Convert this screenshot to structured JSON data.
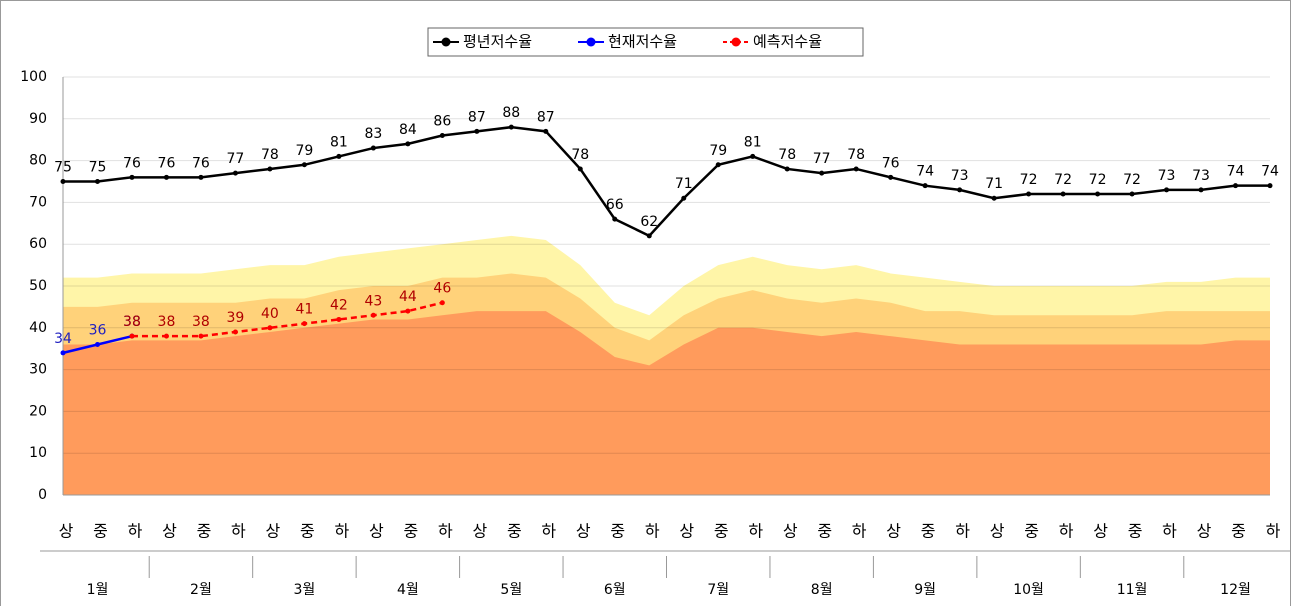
{
  "chart_data": {
    "type": "line",
    "categories": [
      "상",
      "중",
      "하",
      "상",
      "중",
      "하",
      "상",
      "중",
      "하",
      "상",
      "중",
      "하",
      "상",
      "중",
      "하",
      "상",
      "중",
      "하",
      "상",
      "중",
      "하",
      "상",
      "중",
      "하",
      "상",
      "중",
      "하",
      "상",
      "중",
      "하",
      "상",
      "중",
      "하",
      "상",
      "중",
      "하"
    ],
    "groups": [
      "1월",
      "2월",
      "3월",
      "4월",
      "5월",
      "6월",
      "7월",
      "8월",
      "9월",
      "10월",
      "11월",
      "12월"
    ],
    "ylim": [
      0,
      100
    ],
    "yticks": [
      0,
      10,
      20,
      30,
      40,
      50,
      60,
      70,
      80,
      90,
      100
    ],
    "grid": true,
    "bands": [
      {
        "color": "#fff5a8",
        "values": [
          52,
          52,
          53,
          53,
          53,
          54,
          55,
          55,
          57,
          58,
          59,
          60,
          61,
          62,
          61,
          55,
          46,
          43,
          50,
          55,
          57,
          55,
          54,
          55,
          53,
          52,
          51,
          50,
          50,
          50,
          50,
          50,
          51,
          51,
          52,
          52
        ]
      },
      {
        "color": "#ffd27a",
        "values": [
          45,
          45,
          46,
          46,
          46,
          46,
          47,
          47,
          49,
          50,
          50,
          52,
          52,
          53,
          52,
          47,
          40,
          37,
          43,
          47,
          49,
          47,
          46,
          47,
          46,
          44,
          44,
          43,
          43,
          43,
          43,
          43,
          44,
          44,
          44,
          44
        ]
      },
      {
        "color": "#ff9b5c",
        "values": [
          36,
          36,
          37,
          37,
          37,
          38,
          39,
          40,
          41,
          42,
          42,
          43,
          44,
          44,
          44,
          39,
          33,
          31,
          36,
          40,
          40,
          39,
          38,
          39,
          38,
          37,
          36,
          36,
          36,
          36,
          36,
          36,
          36,
          36,
          37,
          37
        ]
      }
    ],
    "series": [
      {
        "name": "평년저수율",
        "color": "#000000",
        "label_color": "#000000",
        "values": [
          75,
          75,
          76,
          76,
          76,
          77,
          78,
          79,
          81,
          83,
          84,
          86,
          87,
          88,
          87,
          78,
          66,
          62,
          71,
          79,
          81,
          78,
          77,
          78,
          76,
          74,
          73,
          71,
          72,
          72,
          72,
          72,
          73,
          73,
          74,
          74
        ]
      },
      {
        "name": "현재저수율",
        "color": "#0000ff",
        "label_color": "#2020c0",
        "values": [
          34,
          36,
          38,
          null,
          null,
          null,
          null,
          null,
          null,
          null,
          null,
          null,
          null,
          null,
          null,
          null,
          null,
          null,
          null,
          null,
          null,
          null,
          null,
          null,
          null,
          null,
          null,
          null,
          null,
          null,
          null,
          null,
          null,
          null,
          null,
          null
        ]
      },
      {
        "name": "예측저수율",
        "color": "#ff0000",
        "label_color": "#b00000",
        "dashed": true,
        "values": [
          null,
          null,
          38,
          38,
          38,
          39,
          40,
          41,
          42,
          43,
          44,
          46,
          null,
          null,
          null,
          null,
          null,
          null,
          null,
          null,
          null,
          null,
          null,
          null,
          null,
          null,
          null,
          null,
          null,
          null,
          null,
          null,
          null,
          null,
          null,
          null
        ]
      }
    ]
  }
}
